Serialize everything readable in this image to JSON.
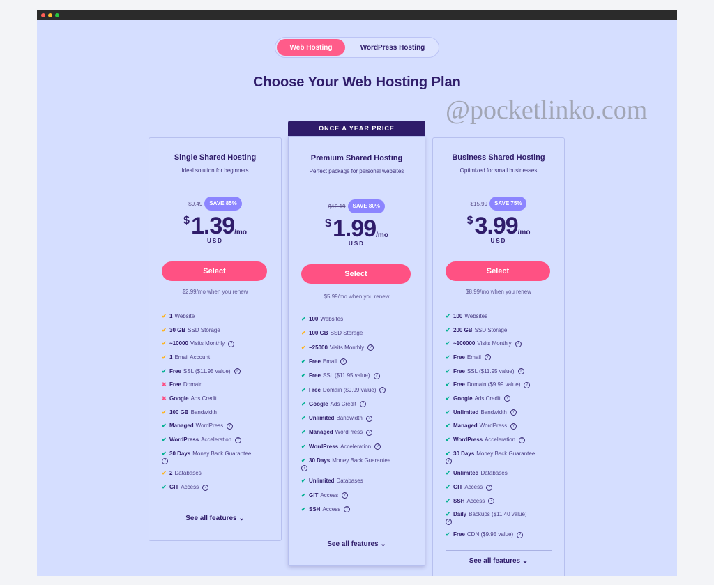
{
  "colors": {
    "accent": "#ff5183",
    "brand": "#2f1c6a",
    "save_badge": "#8c85ff",
    "check_green": "#00b090",
    "check_orange": "#ffb31a",
    "cross_red": "#fc5185"
  },
  "toggle": {
    "active": "Web Hosting",
    "inactive": "WordPress Hosting"
  },
  "heading": "Choose Your Web Hosting Plan",
  "watermark": "@pocketlinko.com",
  "banner": "ONCE A YEAR PRICE",
  "plans": [
    {
      "title": "Single Shared Hosting",
      "subtitle": "Ideal solution for beginners",
      "original_price": "$9.49",
      "save": "SAVE 85%",
      "currency": "$",
      "price": "1.39",
      "period": "/mo",
      "unit": "USD",
      "button": "Select",
      "renew": "$2.99/mo when you renew",
      "see_all": "See all features",
      "features": [
        {
          "icon": "check-orange",
          "bold": "1",
          "text": "Website",
          "help": false
        },
        {
          "icon": "check-orange",
          "bold": "30 GB",
          "text": "SSD Storage",
          "help": false
        },
        {
          "icon": "check-orange",
          "bold": "~10000",
          "text": "Visits Monthly",
          "help": true
        },
        {
          "icon": "check-orange",
          "bold": "1",
          "text": "Email Account",
          "help": false
        },
        {
          "icon": "check-green",
          "bold": "Free",
          "text": "SSL ($11.95 value)",
          "help": true
        },
        {
          "icon": "cross",
          "bold": "Free",
          "text": "Domain",
          "help": false
        },
        {
          "icon": "cross",
          "bold": "Google",
          "text": "Ads Credit",
          "help": false
        },
        {
          "icon": "check-orange",
          "bold": "100 GB",
          "text": "Bandwidth",
          "help": false
        },
        {
          "icon": "check-green",
          "bold": "Managed",
          "text": "WordPress",
          "help": true
        },
        {
          "icon": "check-green",
          "bold": "WordPress",
          "text": "Acceleration",
          "help": true
        },
        {
          "icon": "check-green",
          "bold": "30 Days",
          "text": "Money Back Guarantee",
          "help": true
        },
        {
          "icon": "check-orange",
          "bold": "2",
          "text": "Databases",
          "help": false
        },
        {
          "icon": "check-green",
          "bold": "GIT",
          "text": "Access",
          "help": true
        }
      ]
    },
    {
      "title": "Premium Shared Hosting",
      "subtitle": "Perfect package for personal websites",
      "original_price": "$10.19",
      "save": "SAVE 80%",
      "currency": "$",
      "price": "1.99",
      "period": "/mo",
      "unit": "USD",
      "button": "Select",
      "renew": "$5.99/mo when you renew",
      "see_all": "See all features",
      "features": [
        {
          "icon": "check-green",
          "bold": "100",
          "text": "Websites",
          "help": false
        },
        {
          "icon": "check-orange",
          "bold": "100 GB",
          "text": "SSD Storage",
          "help": false
        },
        {
          "icon": "check-orange",
          "bold": "~25000",
          "text": "Visits Monthly",
          "help": true
        },
        {
          "icon": "check-green",
          "bold": "Free",
          "text": "Email",
          "help": true
        },
        {
          "icon": "check-green",
          "bold": "Free",
          "text": "SSL ($11.95 value)",
          "help": true
        },
        {
          "icon": "check-green",
          "bold": "Free",
          "text": "Domain ($9.99 value)",
          "help": true
        },
        {
          "icon": "check-green",
          "bold": "Google",
          "text": "Ads Credit",
          "help": true
        },
        {
          "icon": "check-green",
          "bold": "Unlimited",
          "text": "Bandwidth",
          "help": true
        },
        {
          "icon": "check-green",
          "bold": "Managed",
          "text": "WordPress",
          "help": true
        },
        {
          "icon": "check-green",
          "bold": "WordPress",
          "text": "Acceleration",
          "help": true
        },
        {
          "icon": "check-green",
          "bold": "30 Days",
          "text": "Money Back Guarantee",
          "help": true
        },
        {
          "icon": "check-green",
          "bold": "Unlimited",
          "text": "Databases",
          "help": false
        },
        {
          "icon": "check-green",
          "bold": "GIT",
          "text": "Access",
          "help": true
        },
        {
          "icon": "check-green",
          "bold": "SSH",
          "text": "Access",
          "help": true
        }
      ]
    },
    {
      "title": "Business Shared Hosting",
      "subtitle": "Optimized for small businesses",
      "original_price": "$15.99",
      "save": "SAVE 75%",
      "currency": "$",
      "price": "3.99",
      "period": "/mo",
      "unit": "USD",
      "button": "Select",
      "renew": "$8.99/mo when you renew",
      "see_all": "See all features",
      "features": [
        {
          "icon": "check-green",
          "bold": "100",
          "text": "Websites",
          "help": false
        },
        {
          "icon": "check-green",
          "bold": "200 GB",
          "text": "SSD Storage",
          "help": false
        },
        {
          "icon": "check-green",
          "bold": "~100000",
          "text": "Visits Monthly",
          "help": true
        },
        {
          "icon": "check-green",
          "bold": "Free",
          "text": "Email",
          "help": true
        },
        {
          "icon": "check-green",
          "bold": "Free",
          "text": "SSL ($11.95 value)",
          "help": true
        },
        {
          "icon": "check-green",
          "bold": "Free",
          "text": "Domain ($9.99 value)",
          "help": true
        },
        {
          "icon": "check-green",
          "bold": "Google",
          "text": "Ads Credit",
          "help": true
        },
        {
          "icon": "check-green",
          "bold": "Unlimited",
          "text": "Bandwidth",
          "help": true
        },
        {
          "icon": "check-green",
          "bold": "Managed",
          "text": "WordPress",
          "help": true
        },
        {
          "icon": "check-green",
          "bold": "WordPress",
          "text": "Acceleration",
          "help": true
        },
        {
          "icon": "check-green",
          "bold": "30 Days",
          "text": "Money Back Guarantee",
          "help": true
        },
        {
          "icon": "check-green",
          "bold": "Unlimited",
          "text": "Databases",
          "help": false
        },
        {
          "icon": "check-green",
          "bold": "GIT",
          "text": "Access",
          "help": true
        },
        {
          "icon": "check-green",
          "bold": "SSH",
          "text": "Access",
          "help": true
        },
        {
          "icon": "check-green",
          "bold": "Daily",
          "text": "Backups ($11.40 value)",
          "help": true
        },
        {
          "icon": "check-green",
          "bold": "Free",
          "text": "CDN ($9.95 value)",
          "help": true
        }
      ]
    }
  ]
}
